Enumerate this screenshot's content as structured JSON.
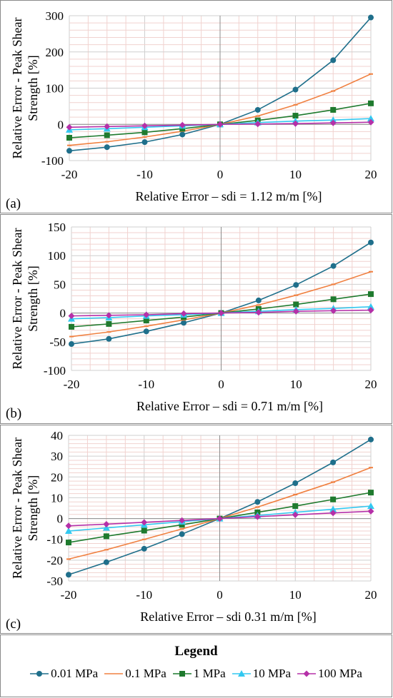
{
  "colors": {
    "0.01 MPa": "#1f6f8b",
    "0.1 MPa": "#f08040",
    "1 MPa": "#1f7a2e",
    "10 MPa": "#33c8f0",
    "100 MPa": "#b530a8"
  },
  "legend": {
    "title": "Legend",
    "items": [
      {
        "label": "0.01 MPa",
        "marker": "circle"
      },
      {
        "label": "0.1 MPa",
        "marker": "line"
      },
      {
        "label": "1 MPa",
        "marker": "square"
      },
      {
        "label": "10 MPa",
        "marker": "triangle"
      },
      {
        "label": "100 MPa",
        "marker": "diamond"
      }
    ]
  },
  "chart_data": [
    {
      "type": "line",
      "panel_label": "(a)",
      "xlabel": "Relative Error – sdi = 1.12 m/m [%]",
      "ylabel": [
        "Relative Error - Peak Shear",
        "Strength [%]"
      ],
      "x": [
        -20,
        -15,
        -10,
        -5,
        0,
        5,
        10,
        15,
        20
      ],
      "xlim": [
        -20,
        20
      ],
      "xticks": [
        -20,
        -10,
        0,
        10,
        20
      ],
      "ylim": [
        -100,
        300
      ],
      "yticks": [
        -100,
        0,
        100,
        200,
        300
      ],
      "grid": true,
      "series": [
        {
          "name": "0.01 MPa",
          "values": [
            -73,
            -63,
            -49,
            -28,
            0,
            40,
            96,
            177,
            295
          ]
        },
        {
          "name": "0.1 MPa",
          "values": [
            -58,
            -48,
            -35,
            -19,
            0,
            23,
            54,
            92,
            139
          ]
        },
        {
          "name": "1 MPa",
          "values": [
            -37,
            -30,
            -22,
            -12,
            0,
            11,
            24,
            40,
            58
          ]
        },
        {
          "name": "10 MPa",
          "values": [
            -15,
            -12,
            -8,
            -4,
            0,
            5,
            9,
            12,
            16
          ]
        },
        {
          "name": "100 MPa",
          "values": [
            -8,
            -6,
            -4,
            -2,
            0,
            1,
            2,
            4,
            6
          ]
        }
      ]
    },
    {
      "type": "line",
      "panel_label": "(b)",
      "xlabel": "Relative Error – sdi = 0.71 m/m [%]",
      "ylabel": [
        "Relative Error - Peak Shear",
        "Strength [%]"
      ],
      "x": [
        -20,
        -15,
        -10,
        -5,
        0,
        5,
        10,
        15,
        20
      ],
      "xlim": [
        -20,
        20
      ],
      "xticks": [
        -20,
        -10,
        0,
        10,
        20
      ],
      "ylim": [
        -100,
        150
      ],
      "yticks": [
        -100,
        -50,
        0,
        50,
        100,
        150
      ],
      "grid": true,
      "series": [
        {
          "name": "0.01 MPa",
          "values": [
            -54,
            -45,
            -32,
            -17,
            0,
            22,
            49,
            82,
            123
          ]
        },
        {
          "name": "0.1 MPa",
          "values": [
            -41,
            -33,
            -23,
            -12,
            0,
            14,
            31,
            50,
            72
          ]
        },
        {
          "name": "1 MPa",
          "values": [
            -24,
            -19,
            -13,
            -7,
            0,
            7,
            15,
            24,
            33
          ]
        },
        {
          "name": "10 MPa",
          "values": [
            -10,
            -8,
            -5,
            -3,
            0,
            3,
            6,
            8,
            11
          ]
        },
        {
          "name": "100 MPa",
          "values": [
            -5,
            -4,
            -3,
            -1,
            0,
            1,
            3,
            4,
            5
          ]
        }
      ]
    },
    {
      "type": "line",
      "panel_label": "(c)",
      "xlabel": "Relative Error – sdi 0.31 m/m [%]",
      "ylabel": [
        "Relative Error - Peak Shear",
        "Strength [%]"
      ],
      "x": [
        -20,
        -15,
        -10,
        -5,
        0,
        5,
        10,
        15,
        20
      ],
      "xlim": [
        -20,
        20
      ],
      "xticks": [
        -20,
        -10,
        0,
        10,
        20
      ],
      "ylim": [
        -30,
        40
      ],
      "yticks": [
        -30,
        -20,
        -10,
        0,
        10,
        20,
        30,
        40
      ],
      "grid": true,
      "series": [
        {
          "name": "0.01 MPa",
          "values": [
            -27,
            -21,
            -14.5,
            -7.5,
            0,
            8,
            17,
            27,
            38
          ]
        },
        {
          "name": "0.1 MPa",
          "values": [
            -19.5,
            -15,
            -10,
            -5,
            0,
            5.5,
            11.5,
            17.5,
            24.5
          ]
        },
        {
          "name": "1 MPa",
          "values": [
            -11.5,
            -8.5,
            -5.8,
            -3,
            0,
            3,
            6,
            9.2,
            12.5
          ]
        },
        {
          "name": "10 MPa",
          "values": [
            -6,
            -4.5,
            -3,
            -1.5,
            0,
            1.5,
            3,
            4.5,
            6
          ]
        },
        {
          "name": "100 MPa",
          "values": [
            -3.5,
            -2.7,
            -1.8,
            -0.9,
            0,
            0.9,
            1.8,
            2.7,
            3.5
          ]
        }
      ]
    }
  ]
}
